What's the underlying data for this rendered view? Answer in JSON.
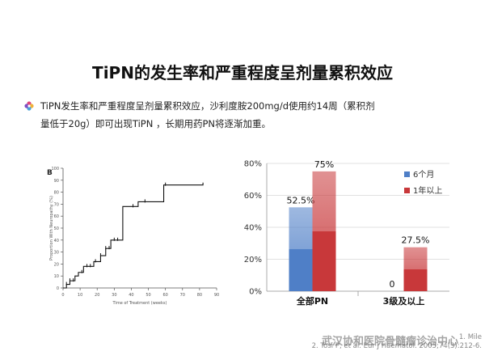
{
  "slide": {
    "title": "TiPN的发生率和严重程度呈剂量累积效应",
    "bullet_line1": "TiPN发生率和严重程度呈剂量累积效应，沙利度胺200mg/d使用约14周（累积剂",
    "bullet_line2": "量低于20g）即可出现TiPN ，长期用药PN将逐渐加重。",
    "bullet_icon": "colorful-flower-bullet-icon"
  },
  "references": {
    "line1": "1. Mile",
    "line2": "2. Tosi P, et al. Eur J Haematol. 2005;74(3):212-6."
  },
  "watermark": "武汉协和医院骨髓瘤诊治中心",
  "chart_data": [
    {
      "type": "line",
      "panel_label": "B",
      "xlabel": "Time of Treatment (weeks)",
      "ylabel": "Proportion With Neuropathy (%)",
      "x_ticks": [
        "0",
        "10",
        "20",
        "30",
        "40",
        "50",
        "60",
        "70",
        "80",
        "90"
      ],
      "y_ticks": [
        "0",
        "10",
        "20",
        "30",
        "40",
        "50",
        "60",
        "70",
        "80",
        "90",
        "100"
      ],
      "xlim": [
        0,
        90
      ],
      "ylim": [
        0,
        100
      ],
      "step": [
        [
          0,
          0
        ],
        [
          2,
          3
        ],
        [
          4,
          6
        ],
        [
          7,
          10
        ],
        [
          9,
          13
        ],
        [
          12,
          18
        ],
        [
          18,
          22
        ],
        [
          22,
          27
        ],
        [
          25,
          33
        ],
        [
          28,
          40
        ],
        [
          35,
          68
        ],
        [
          44,
          72
        ],
        [
          59,
          86
        ],
        [
          82,
          88
        ]
      ],
      "censor_weeks": [
        2,
        4,
        6,
        11,
        14,
        16,
        19,
        22,
        25,
        27,
        30,
        32,
        41,
        48,
        60
      ]
    },
    {
      "type": "bar",
      "categories": [
        "全部PN",
        "3级及以上"
      ],
      "series": [
        {
          "name": "6个月",
          "values": [
            52.5,
            0
          ],
          "color": "#4f7fc7"
        },
        {
          "name": "1年以上",
          "values": [
            75,
            27.5
          ],
          "color": "#c8383a"
        }
      ],
      "data_labels": [
        [
          "52.5%",
          "0"
        ],
        [
          "75%",
          "27.5%"
        ]
      ],
      "y_ticks": [
        "0%",
        "20%",
        "40%",
        "60%",
        "80%"
      ],
      "ylim": [
        0,
        80
      ],
      "legend_position": "right"
    }
  ]
}
